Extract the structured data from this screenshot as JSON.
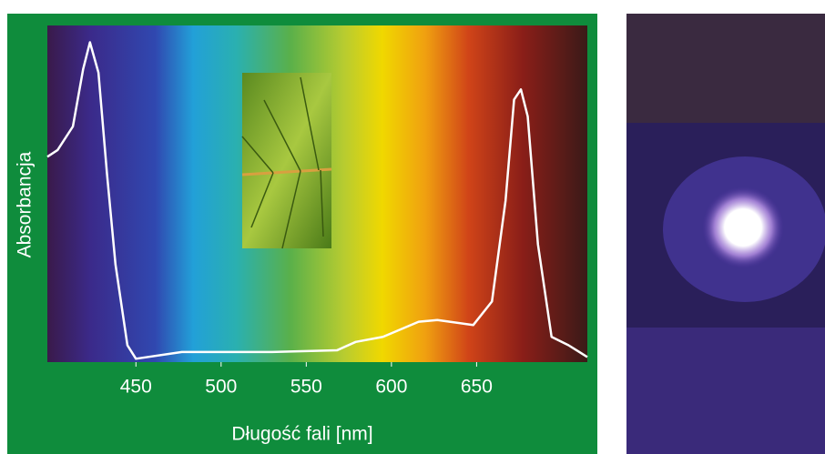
{
  "chart_data": {
    "type": "line",
    "x_label": "Długość fali [nm]",
    "y_label": "Absorbancja",
    "x": [
      398,
      404,
      413,
      419,
      423,
      428,
      433,
      438,
      445,
      450,
      477,
      530,
      568,
      579,
      595,
      616,
      627,
      648,
      659,
      667,
      672,
      676,
      680,
      686,
      694,
      704,
      715
    ],
    "series": [
      {
        "color": "#ffffff",
        "values": [
          0.61,
          0.63,
          0.7,
          0.87,
          0.95,
          0.86,
          0.56,
          0.29,
          0.05,
          0.01,
          0.03,
          0.03,
          0.035,
          0.06,
          0.075,
          0.12,
          0.125,
          0.11,
          0.18,
          0.48,
          0.78,
          0.81,
          0.73,
          0.35,
          0.075,
          0.05,
          0.015
        ]
      }
    ],
    "xlim": [
      398,
      715
    ],
    "xticks": [
      450,
      500,
      550,
      600,
      650
    ],
    "ylim": [
      0,
      1
    ]
  }
}
